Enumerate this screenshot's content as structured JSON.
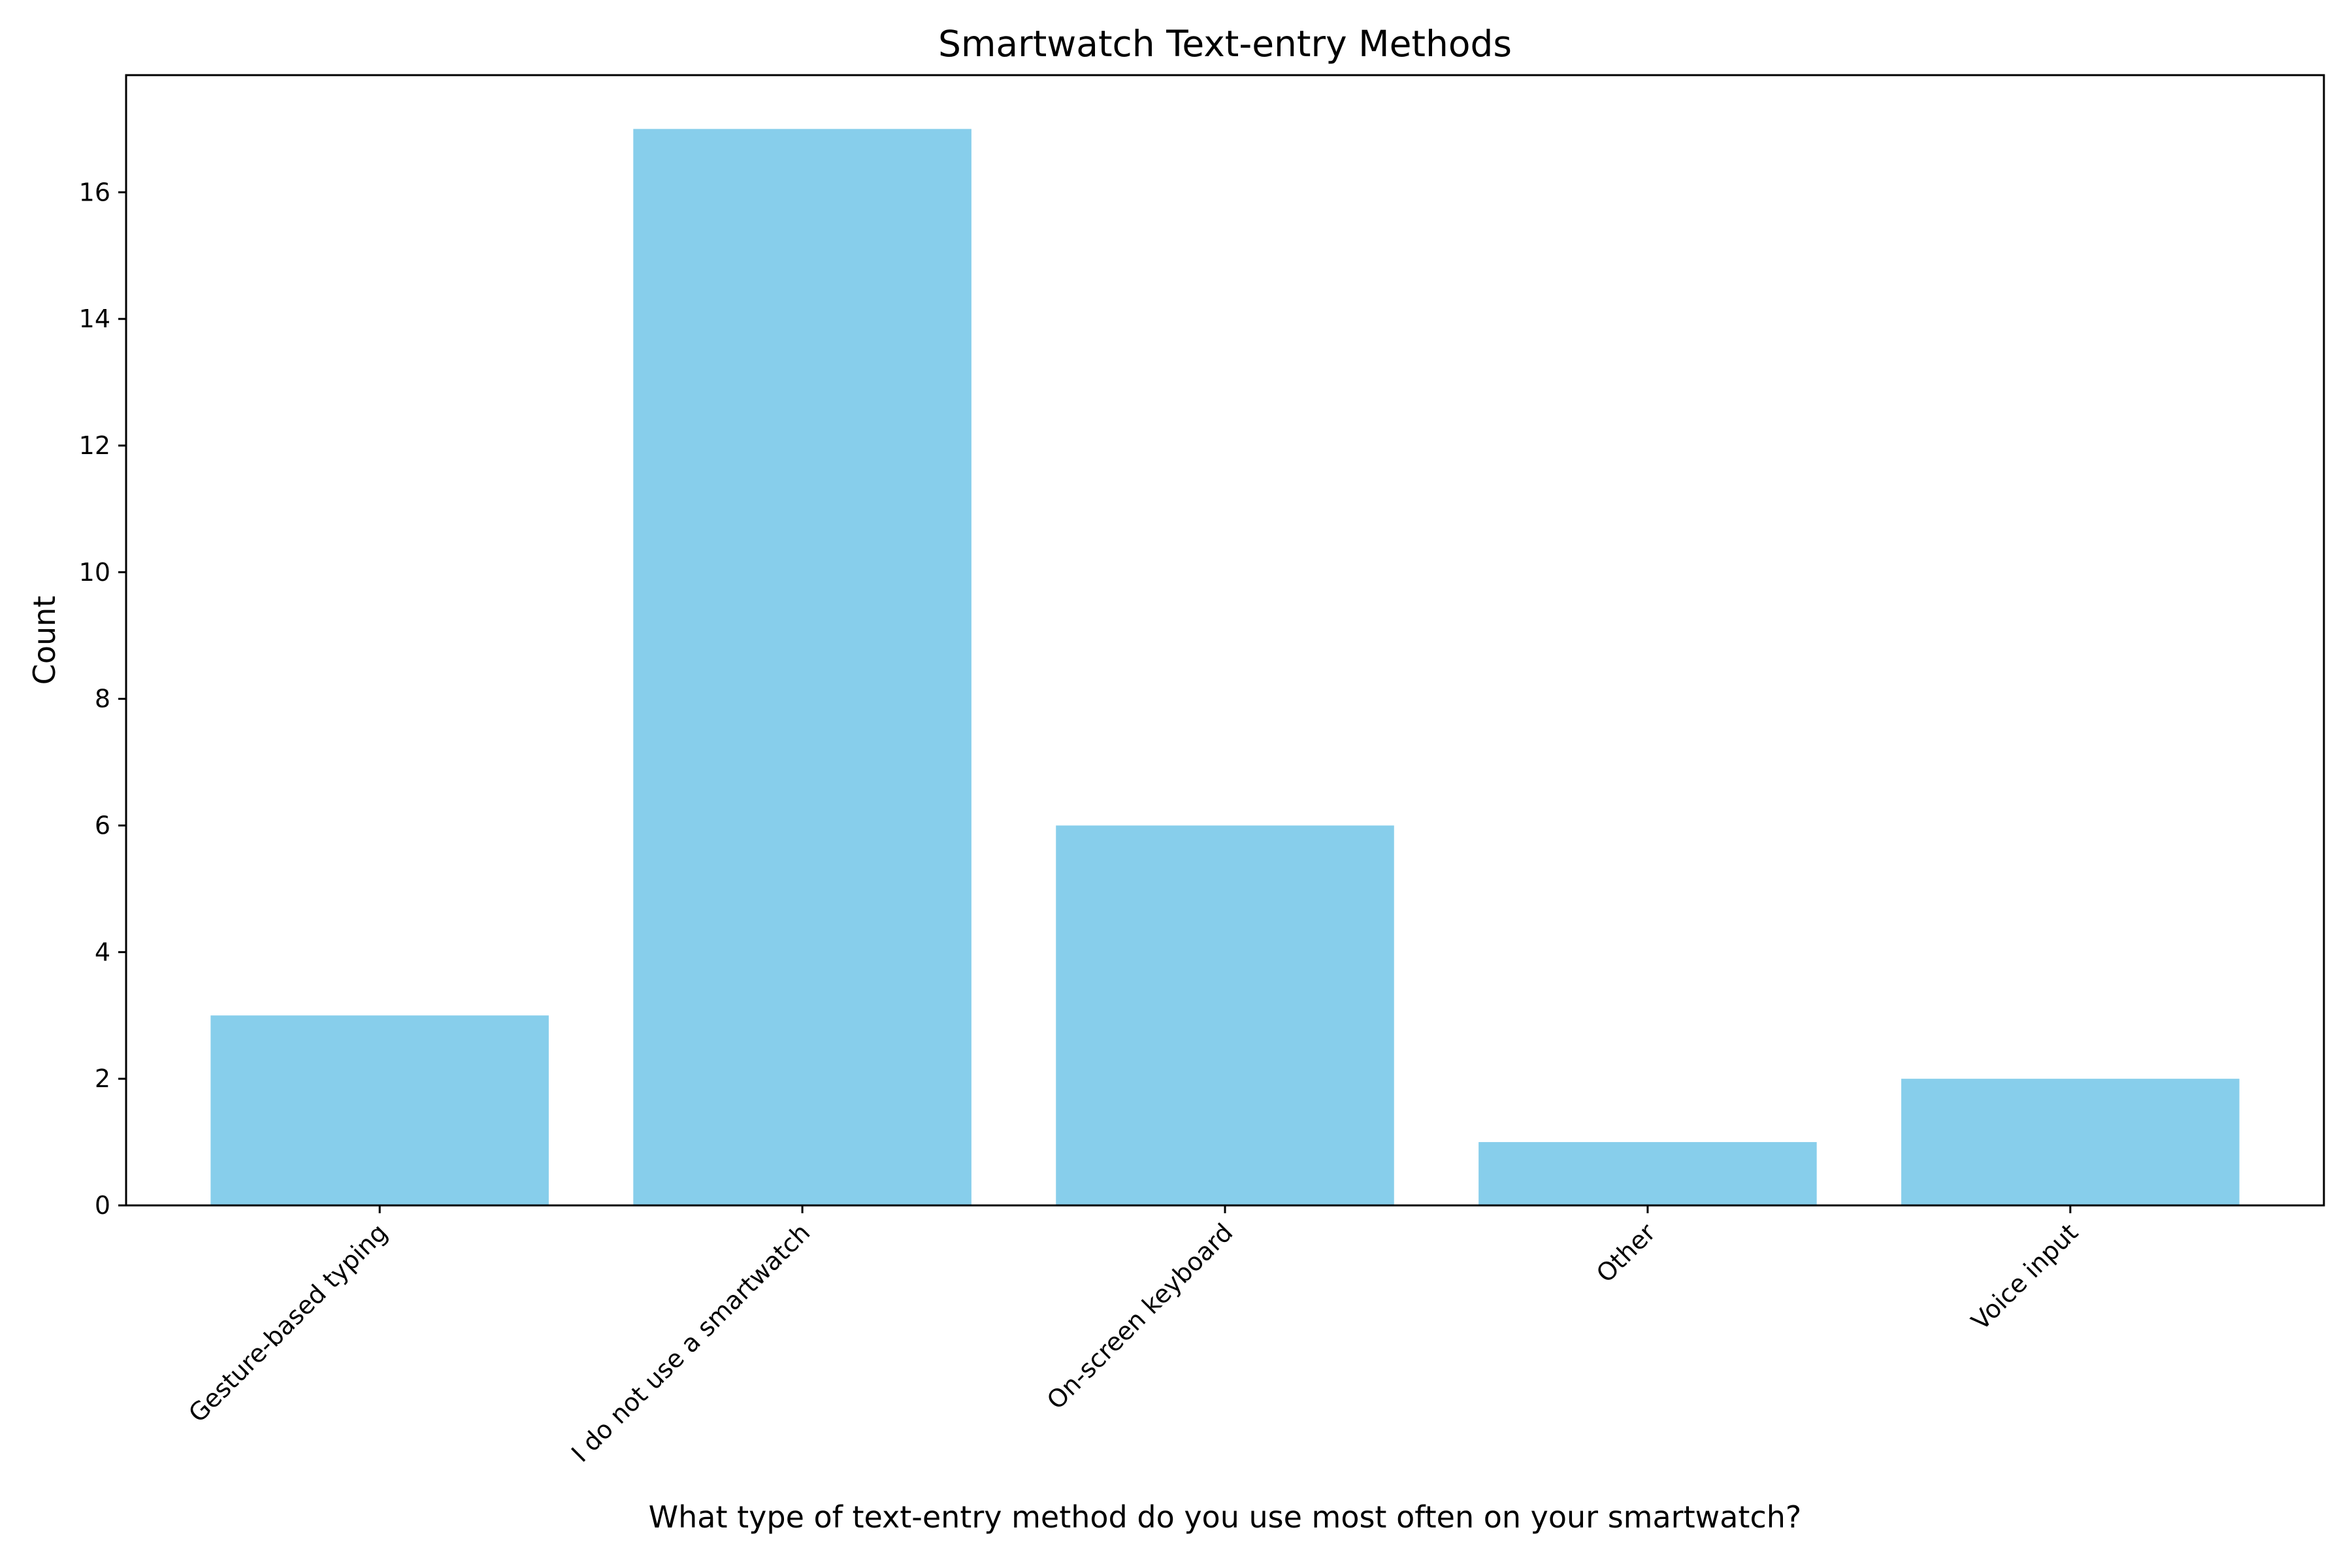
{
  "chart_data": {
    "type": "bar",
    "title": "Smartwatch Text-entry Methods",
    "xlabel": "What type of text-entry method do you use most often on your smartwatch?",
    "ylabel": "Count",
    "categories": [
      "Gesture-based typing",
      "I do not use a smartwatch",
      "On-screen keyboard",
      "Other",
      "Voice input"
    ],
    "values": [
      3,
      17,
      6,
      1,
      2
    ],
    "ylim": [
      0,
      17.85
    ],
    "yticks": [
      0,
      2,
      4,
      6,
      8,
      10,
      12,
      14,
      16
    ],
    "grid": false,
    "legend": "none",
    "colors": {
      "bar": "#87CEEB",
      "axis": "#000000",
      "background": "#ffffff"
    }
  }
}
